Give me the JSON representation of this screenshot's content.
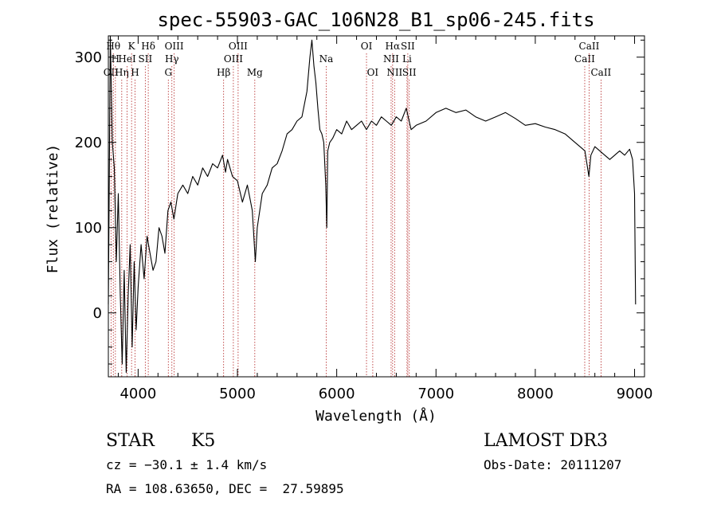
{
  "chart_data": {
    "type": "line",
    "title": "spec-55903-GAC_106N28_B1_sp06-245.fits",
    "xlabel": "Wavelength (Å)",
    "ylabel": "Flux (relative)",
    "xlim": [
      3700,
      9100
    ],
    "ylim": [
      -75,
      325
    ],
    "x_ticks": [
      4000,
      5000,
      6000,
      7000,
      8000,
      9000
    ],
    "y_ticks": [
      0,
      100,
      200,
      300
    ],
    "grid": false,
    "colors": {
      "spectrum": "#000000",
      "line_markers": "#b22222"
    },
    "series": [
      {
        "x": [
          3700,
          3720,
          3740,
          3760,
          3780,
          3800,
          3820,
          3840,
          3860,
          3880,
          3900,
          3920,
          3940,
          3960,
          3980,
          4000,
          4030,
          4060,
          4090,
          4120,
          4150,
          4180,
          4210,
          4240,
          4270,
          4300,
          4330,
          4360,
          4400,
          4450,
          4500,
          4550,
          4600,
          4650,
          4700,
          4750,
          4800,
          4850,
          4880,
          4900,
          4950,
          5000,
          5050,
          5100,
          5150,
          5180,
          5200,
          5250,
          5300,
          5350,
          5400,
          5450,
          5500,
          5550,
          5600,
          5650,
          5700,
          5730,
          5750,
          5770,
          5790,
          5810,
          5830,
          5850,
          5870,
          5890,
          5900,
          5910,
          5930,
          5960,
          6000,
          6050,
          6100,
          6150,
          6200,
          6250,
          6300,
          6350,
          6400,
          6450,
          6500,
          6550,
          6600,
          6650,
          6700,
          6750,
          6800,
          6900,
          7000,
          7100,
          7200,
          7300,
          7400,
          7500,
          7600,
          7700,
          7800,
          7900,
          8000,
          8100,
          8200,
          8300,
          8400,
          8450,
          8500,
          8540,
          8560,
          8600,
          8650,
          8700,
          8750,
          8800,
          8850,
          8900,
          8950,
          8980,
          9000,
          9010
        ],
        "y": [
          10,
          330,
          200,
          170,
          60,
          140,
          20,
          -60,
          50,
          -70,
          20,
          80,
          -40,
          60,
          -20,
          30,
          80,
          40,
          90,
          70,
          50,
          60,
          100,
          90,
          70,
          120,
          130,
          110,
          140,
          150,
          140,
          160,
          150,
          170,
          160,
          175,
          170,
          185,
          165,
          180,
          160,
          155,
          130,
          150,
          120,
          60,
          100,
          140,
          150,
          170,
          175,
          190,
          210,
          215,
          225,
          230,
          260,
          300,
          320,
          290,
          270,
          240,
          215,
          210,
          200,
          150,
          100,
          190,
          200,
          205,
          215,
          210,
          225,
          215,
          220,
          225,
          215,
          225,
          220,
          230,
          225,
          220,
          230,
          225,
          240,
          215,
          220,
          225,
          235,
          240,
          235,
          238,
          230,
          225,
          230,
          235,
          228,
          220,
          222,
          218,
          215,
          210,
          200,
          195,
          190,
          160,
          185,
          195,
          190,
          185,
          180,
          185,
          190,
          185,
          192,
          180,
          140,
          10
        ]
      }
    ],
    "line_markers": [
      {
        "x": 3727,
        "label": "OII",
        "row": 3
      },
      {
        "x": 3750,
        "label": "Hθ",
        "row": 1
      },
      {
        "x": 3771,
        "label": "H",
        "row": 2
      },
      {
        "x": 3835,
        "label": "Hη",
        "row": 3
      },
      {
        "x": 3889,
        "label": "HeI",
        "row": 2
      },
      {
        "x": 3934,
        "label": "K",
        "row": 1
      },
      {
        "x": 3969,
        "label": "H",
        "row": 3
      },
      {
        "x": 4072,
        "label": "SII",
        "row": 2
      },
      {
        "x": 4102,
        "label": "Hδ",
        "row": 1
      },
      {
        "x": 4304,
        "label": "G",
        "row": 3
      },
      {
        "x": 4340,
        "label": "Hγ",
        "row": 2
      },
      {
        "x": 4363,
        "label": "OIII",
        "row": 1
      },
      {
        "x": 4861,
        "label": "Hβ",
        "row": 3
      },
      {
        "x": 4959,
        "label": "OIII",
        "row": 2
      },
      {
        "x": 5007,
        "label": "OIII",
        "row": 1
      },
      {
        "x": 5175,
        "label": "Mg",
        "row": 3
      },
      {
        "x": 5894,
        "label": "Na",
        "row": 2
      },
      {
        "x": 6300,
        "label": "OI",
        "row": 1
      },
      {
        "x": 6363,
        "label": "OI",
        "row": 3
      },
      {
        "x": 6548,
        "label": "NII",
        "row": 2
      },
      {
        "x": 6563,
        "label": "Hα",
        "row": 1
      },
      {
        "x": 6583,
        "label": "NII",
        "row": 3
      },
      {
        "x": 6708,
        "label": "Li",
        "row": 2
      },
      {
        "x": 6716,
        "label": "SII",
        "row": 1
      },
      {
        "x": 6731,
        "label": "SII",
        "row": 3
      },
      {
        "x": 8498,
        "label": "CaII",
        "row": 2
      },
      {
        "x": 8542,
        "label": "CaII",
        "row": 1
      },
      {
        "x": 8662,
        "label": "CaII",
        "row": 3
      }
    ]
  },
  "info": {
    "object_class": "STAR",
    "subclass": "K5",
    "survey": "LAMOST DR3",
    "cz": "cz = −30.1 ± 1.4 km/s",
    "obs_date": "Obs-Date: 20111207",
    "coords": "RA = 108.63650, DEC =  27.59895"
  }
}
